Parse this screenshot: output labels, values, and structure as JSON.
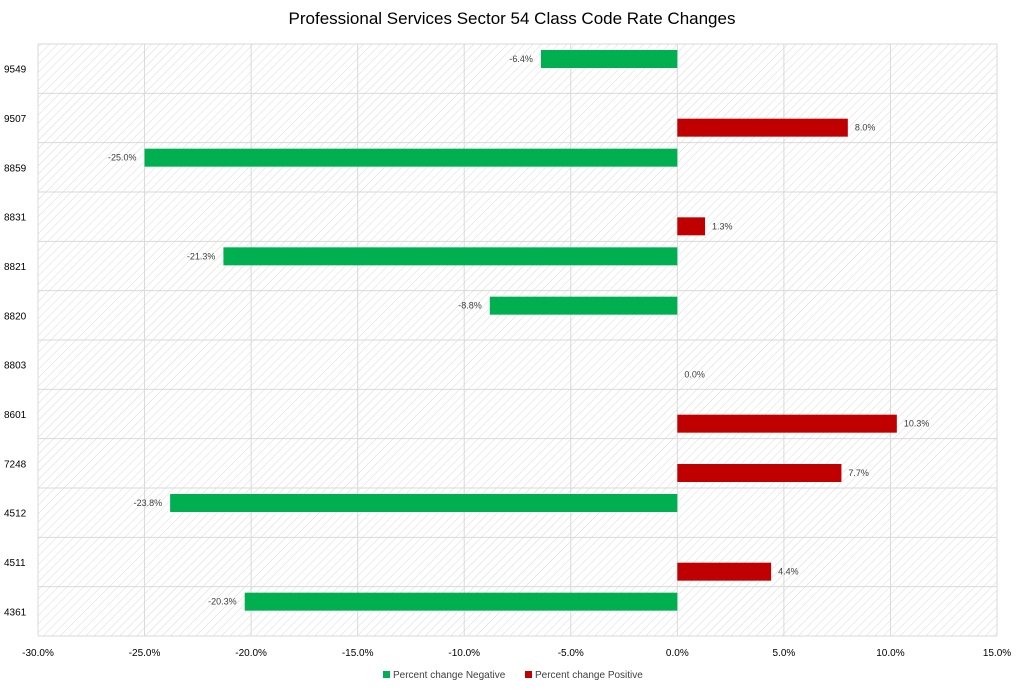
{
  "chart_data": {
    "type": "bar",
    "orientation": "horizontal",
    "title": "Professional Services Sector  54 Class Code Rate Changes",
    "categories": [
      "9549",
      "9507",
      "8859",
      "8831",
      "8821",
      "8820",
      "8803",
      "8601",
      "7248",
      "4512",
      "4511",
      "4361"
    ],
    "series": [
      {
        "name": "Percent change Negative",
        "color": "#00b050",
        "values": [
          -6.4,
          null,
          -25.0,
          null,
          -21.3,
          -8.8,
          null,
          null,
          null,
          -23.8,
          null,
          -20.3
        ],
        "labels": [
          "-6.4%",
          "",
          "-25.0%",
          "",
          "-21.3%",
          "-8.8%",
          "",
          "",
          "",
          "-23.8%",
          "",
          "-20.3%"
        ]
      },
      {
        "name": "Percent change Positive",
        "color": "#c00000",
        "values": [
          null,
          8.0,
          null,
          1.3,
          null,
          null,
          0.0,
          10.3,
          7.7,
          null,
          4.4,
          null
        ],
        "labels": [
          "",
          "8.0%",
          "",
          "1.3%",
          "",
          "",
          "0.0%",
          "10.3%",
          "7.7%",
          "",
          "4.4%",
          ""
        ]
      }
    ],
    "xlim": [
      -30,
      15
    ],
    "xticks": [
      -30,
      -25,
      -20,
      -15,
      -10,
      -5,
      0,
      5,
      10,
      15
    ],
    "xtick_labels": [
      "-30.0%",
      "-25.0%",
      "-20.0%",
      "-15.0%",
      "-10.0%",
      "-5.0%",
      "0.0%",
      "5.0%",
      "10.0%",
      "15.0%"
    ],
    "grid": true,
    "plot_background": "diagonal hatch",
    "legend_position": "bottom"
  }
}
